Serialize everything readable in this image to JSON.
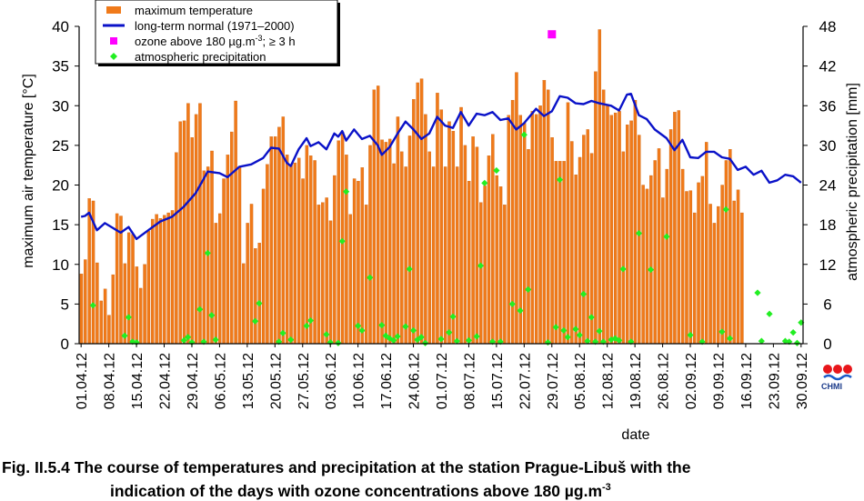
{
  "caption": {
    "line1": "Fig. II.5.4  The course of temperatures and precipitation at the station Prague-Libuš with the",
    "line2_main": "indication of the days with ozone concentrations above 180 µg.m",
    "line2_sup": "-3"
  },
  "logo": {
    "text": "CHMI"
  },
  "chart_data": {
    "type": "bar",
    "xlabel": "date",
    "ylabel_left": "maximum air temperature [°C]",
    "ylabel_right": "atmospheric precipitation [mm]",
    "ylim_left": [
      0,
      40
    ],
    "ylim_right": [
      0,
      48
    ],
    "yticks_left": [
      "0",
      "5",
      "10",
      "15",
      "20",
      "25",
      "30",
      "35",
      "40"
    ],
    "yticks_right": [
      "0",
      "6",
      "12",
      "18",
      "24",
      "30",
      "36",
      "42",
      "48"
    ],
    "xtick_labels": [
      "01.04.12",
      "08.04.12",
      "15.04.12",
      "22.04.12",
      "29.04.12",
      "06.05.12",
      "13.05.12",
      "20.05.12",
      "27.05.12",
      "03.06.12",
      "10.06.12",
      "17.06.12",
      "24.06.12",
      "01.07.12",
      "08.07.12",
      "15.07.12",
      "22.07.12",
      "29.07.12",
      "05.08.12",
      "12.08.12",
      "19.08.12",
      "26.08.12",
      "02.09.12",
      "09.09.12",
      "16.09.12",
      "23.09.12",
      "30.09.12"
    ],
    "legend": {
      "placement": "top-left",
      "items": [
        {
          "label": "maximum temperature",
          "marker": "bar",
          "color": "#f07a1a"
        },
        {
          "label": "long-term normal (1971–2000)",
          "marker": "line",
          "color": "#0a12c8"
        },
        {
          "label": "ozone above 180 µg.m-3; ≥ 3 h",
          "label_main": "ozone above 180 µg.m",
          "label_sup": "-3",
          "label_tail": "; ≥ 3 h",
          "marker": "square",
          "color": "#ff00ff"
        },
        {
          "label": "atmospheric precipitation",
          "marker": "diamond",
          "color": "#22ee22"
        }
      ]
    },
    "colors": {
      "bar": "#f07a1a",
      "bar_edge": "#c85a00",
      "normal": "#0a12c8",
      "ozone": "#ff00ff",
      "precip": "#22ee22"
    },
    "series": {
      "max_temperature": [
        8.8,
        10.6,
        18.3,
        18.0,
        10.2,
        5.4,
        6.9,
        3.6,
        8.7,
        16.4,
        16.1,
        10.1,
        14.0,
        13.8,
        9.7,
        7.0,
        10.0,
        14.2,
        15.7,
        16.3,
        15.8,
        16.2,
        16.5,
        16.8,
        24.1,
        28.0,
        28.1,
        30.3,
        26.0,
        28.9,
        30.3,
        21.8,
        22.3,
        24.3,
        15.2,
        16.4,
        20.8,
        23.8,
        26.7,
        30.6,
        22.3,
        10.1,
        15.2,
        17.6,
        12.0,
        12.7,
        19.5,
        22.6,
        26.1,
        26.1,
        27.3,
        28.6,
        23.8,
        22.6,
        22.8,
        23.4,
        20.8,
        25.0,
        23.7,
        23.1,
        17.5,
        17.8,
        18.4,
        15.5,
        21.2,
        25.6,
        26.7,
        23.8,
        16.3,
        20.8,
        20.5,
        22.2,
        17.5,
        25.0,
        32.0,
        32.5,
        25.7,
        25.4,
        25.8,
        22.7,
        28.6,
        24.2,
        22.3,
        26.2,
        30.8,
        32.9,
        33.4,
        28.9,
        24.2,
        22.3,
        31.6,
        29.5,
        22.3,
        28.0,
        26.8,
        22.3,
        29.8,
        25.0,
        20.5,
        26.1,
        24.8,
        17.8,
        19.9,
        23.7,
        26.4,
        21.2,
        19.8,
        17.5,
        28.8,
        30.7,
        34.2,
        28.8,
        27.8,
        24.5,
        29.3,
        28.9,
        30.0,
        33.2,
        32.0,
        26.0,
        23.0,
        23.0,
        23.0,
        30.4,
        25.5,
        21.3,
        23.5,
        26.3,
        27.0,
        24.0,
        34.3,
        39.6,
        32.0,
        30.0,
        28.8,
        29.1,
        29.3,
        24.2,
        27.6,
        28.1,
        30.7,
        26.3,
        20.0,
        19.5,
        21.2,
        23.1,
        24.6,
        18.4,
        22.0,
        27.0,
        29.2,
        29.4,
        22.0,
        19.2,
        19.3,
        16.5,
        20.3,
        21.1,
        25.4,
        17.6,
        15.2,
        17.3,
        20.0,
        23.1,
        24.5,
        18.0,
        19.4,
        16.5
      ],
      "normal": [
        {
          "date": "01.04.12",
          "value": 16.0
        },
        {
          "date": "02.04.12",
          "value": 16.1
        },
        {
          "date": "03.04.12",
          "value": 16.5
        },
        {
          "date": "05.04.12",
          "value": 14.3
        },
        {
          "date": "07.04.12",
          "value": 15.2
        },
        {
          "date": "09.04.12",
          "value": 14.6
        },
        {
          "date": "11.04.12",
          "value": 14.0
        },
        {
          "date": "13.04.12",
          "value": 14.7
        },
        {
          "date": "15.04.12",
          "value": 13.2
        },
        {
          "date": "18.04.12",
          "value": 14.3
        },
        {
          "date": "21.04.12",
          "value": 15.4
        },
        {
          "date": "24.04.12",
          "value": 16.0
        },
        {
          "date": "27.04.12",
          "value": 17.3
        },
        {
          "date": "30.04.12",
          "value": 19.0
        },
        {
          "date": "03.05.12",
          "value": 21.7
        },
        {
          "date": "06.05.12",
          "value": 21.5
        },
        {
          "date": "08.05.12",
          "value": 21.0
        },
        {
          "date": "11.05.12",
          "value": 22.3
        },
        {
          "date": "14.05.12",
          "value": 22.6
        },
        {
          "date": "17.05.12",
          "value": 23.4
        },
        {
          "date": "19.05.12",
          "value": 24.7
        },
        {
          "date": "21.05.12",
          "value": 24.6
        },
        {
          "date": "23.05.12",
          "value": 22.8
        },
        {
          "date": "24.05.12",
          "value": 22.4
        },
        {
          "date": "26.05.12",
          "value": 24.5
        },
        {
          "date": "28.05.12",
          "value": 25.9
        },
        {
          "date": "29.05.12",
          "value": 24.9
        },
        {
          "date": "31.05.12",
          "value": 25.4
        },
        {
          "date": "02.06.12",
          "value": 24.5
        },
        {
          "date": "04.06.12",
          "value": 26.5
        },
        {
          "date": "05.06.12",
          "value": 26.1
        },
        {
          "date": "06.06.12",
          "value": 26.8
        },
        {
          "date": "07.06.12",
          "value": 25.6
        },
        {
          "date": "09.06.12",
          "value": 27.0
        },
        {
          "date": "11.06.12",
          "value": 25.8
        },
        {
          "date": "13.06.12",
          "value": 26.2
        },
        {
          "date": "15.06.12",
          "value": 25.0
        },
        {
          "date": "16.06.12",
          "value": 23.8
        },
        {
          "date": "18.06.12",
          "value": 24.8
        },
        {
          "date": "20.06.12",
          "value": 26.5
        },
        {
          "date": "22.06.12",
          "value": 28.0
        },
        {
          "date": "24.06.12",
          "value": 27.0
        },
        {
          "date": "26.06.12",
          "value": 25.8
        },
        {
          "date": "28.06.12",
          "value": 26.5
        },
        {
          "date": "30.06.12",
          "value": 28.6
        },
        {
          "date": "02.07.12",
          "value": 27.5
        },
        {
          "date": "04.07.12",
          "value": 27.2
        },
        {
          "date": "06.07.12",
          "value": 29.2
        },
        {
          "date": "08.07.12",
          "value": 27.5
        },
        {
          "date": "10.07.12",
          "value": 29.0
        },
        {
          "date": "12.07.12",
          "value": 28.8
        },
        {
          "date": "14.07.12",
          "value": 29.2
        },
        {
          "date": "16.07.12",
          "value": 28.2
        },
        {
          "date": "18.07.12",
          "value": 28.4
        },
        {
          "date": "20.07.12",
          "value": 27.0
        },
        {
          "date": "22.07.12",
          "value": 27.8
        },
        {
          "date": "25.07.12",
          "value": 29.6
        },
        {
          "date": "27.07.12",
          "value": 28.7
        },
        {
          "date": "29.07.12",
          "value": 29.3
        },
        {
          "date": "31.07.12",
          "value": 31.2
        },
        {
          "date": "02.08.12",
          "value": 31.0
        },
        {
          "date": "04.08.12",
          "value": 30.3
        },
        {
          "date": "06.08.12",
          "value": 30.2
        },
        {
          "date": "08.08.12",
          "value": 30.6
        },
        {
          "date": "10.08.12",
          "value": 30.3
        },
        {
          "date": "13.08.12",
          "value": 30.0
        },
        {
          "date": "15.08.12",
          "value": 29.4
        },
        {
          "date": "17.08.12",
          "value": 31.4
        },
        {
          "date": "18.08.12",
          "value": 31.5
        },
        {
          "date": "20.08.12",
          "value": 28.8
        },
        {
          "date": "22.08.12",
          "value": 28.3
        },
        {
          "date": "24.08.12",
          "value": 27.0
        },
        {
          "date": "27.08.12",
          "value": 25.9
        },
        {
          "date": "29.08.12",
          "value": 24.4
        },
        {
          "date": "31.08.12",
          "value": 25.7
        },
        {
          "date": "02.09.12",
          "value": 23.5
        },
        {
          "date": "04.09.12",
          "value": 23.4
        },
        {
          "date": "06.09.12",
          "value": 24.2
        },
        {
          "date": "08.09.12",
          "value": 24.2
        },
        {
          "date": "10.09.12",
          "value": 23.5
        },
        {
          "date": "12.09.12",
          "value": 23.3
        },
        {
          "date": "14.09.12",
          "value": 21.9
        },
        {
          "date": "16.09.12",
          "value": 22.3
        },
        {
          "date": "18.09.12",
          "value": 21.3
        },
        {
          "date": "20.09.12",
          "value": 21.8
        },
        {
          "date": "22.09.12",
          "value": 20.3
        },
        {
          "date": "24.09.12",
          "value": 20.6
        },
        {
          "date": "26.09.12",
          "value": 21.3
        },
        {
          "date": "28.09.12",
          "value": 21.1
        },
        {
          "date": "30.09.12",
          "value": 20.3
        }
      ],
      "ozone": [
        {
          "date": "29.07.12",
          "value": 39.0
        }
      ],
      "precipitation_mm": [
        {
          "date": "04.04.12",
          "value": 5.8
        },
        {
          "date": "12.04.12",
          "value": 1.2
        },
        {
          "date": "13.04.12",
          "value": 4.0
        },
        {
          "date": "14.04.12",
          "value": 0.3
        },
        {
          "date": "15.04.12",
          "value": 0.2
        },
        {
          "date": "27.04.12",
          "value": 0.5
        },
        {
          "date": "28.04.12",
          "value": 1.0
        },
        {
          "date": "29.04.12",
          "value": 0.2
        },
        {
          "date": "01.05.12",
          "value": 5.2
        },
        {
          "date": "02.05.12",
          "value": 0.3
        },
        {
          "date": "03.05.12",
          "value": 13.7
        },
        {
          "date": "04.05.12",
          "value": 4.3
        },
        {
          "date": "05.05.12",
          "value": 0.6
        },
        {
          "date": "15.05.12",
          "value": 3.4
        },
        {
          "date": "16.05.12",
          "value": 6.1
        },
        {
          "date": "21.05.12",
          "value": 0.3
        },
        {
          "date": "22.05.12",
          "value": 1.6
        },
        {
          "date": "24.05.12",
          "value": 0.6
        },
        {
          "date": "28.05.12",
          "value": 2.7
        },
        {
          "date": "29.05.12",
          "value": 3.5
        },
        {
          "date": "02.06.12",
          "value": 1.4
        },
        {
          "date": "03.06.12",
          "value": 0.2
        },
        {
          "date": "05.06.12",
          "value": 0.1
        },
        {
          "date": "06.06.12",
          "value": 15.5
        },
        {
          "date": "07.06.12",
          "value": 23.0
        },
        {
          "date": "10.06.12",
          "value": 2.7
        },
        {
          "date": "11.06.12",
          "value": 2.0
        },
        {
          "date": "13.06.12",
          "value": 10.0
        },
        {
          "date": "16.06.12",
          "value": 2.8
        },
        {
          "date": "17.06.12",
          "value": 1.2
        },
        {
          "date": "18.06.12",
          "value": 0.8
        },
        {
          "date": "19.06.12",
          "value": 0.5
        },
        {
          "date": "20.06.12",
          "value": 1.1
        },
        {
          "date": "22.06.12",
          "value": 2.6
        },
        {
          "date": "23.06.12",
          "value": 11.3
        },
        {
          "date": "24.06.12",
          "value": 2.0
        },
        {
          "date": "25.06.12",
          "value": 0.6
        },
        {
          "date": "26.06.12",
          "value": 1.0
        },
        {
          "date": "27.06.12",
          "value": 0.1
        },
        {
          "date": "01.07.12",
          "value": 0.7
        },
        {
          "date": "03.07.12",
          "value": 1.7
        },
        {
          "date": "04.07.12",
          "value": 4.1
        },
        {
          "date": "05.07.12",
          "value": 0.4
        },
        {
          "date": "08.07.12",
          "value": 0.5
        },
        {
          "date": "10.07.12",
          "value": 1.1
        },
        {
          "date": "11.07.12",
          "value": 11.8
        },
        {
          "date": "12.07.12",
          "value": 24.3
        },
        {
          "date": "14.07.12",
          "value": 0.3
        },
        {
          "date": "15.07.12",
          "value": 26.2
        },
        {
          "date": "16.07.12",
          "value": 0.3
        },
        {
          "date": "19.07.12",
          "value": 6.0
        },
        {
          "date": "21.07.12",
          "value": 5.0
        },
        {
          "date": "22.07.12",
          "value": 31.6
        },
        {
          "date": "23.07.12",
          "value": 8.2
        },
        {
          "date": "28.07.12",
          "value": 0.2
        },
        {
          "date": "30.07.12",
          "value": 2.5
        },
        {
          "date": "31.07.12",
          "value": 24.8
        },
        {
          "date": "01.08.12",
          "value": 2.0
        },
        {
          "date": "02.08.12",
          "value": 1.0
        },
        {
          "date": "04.08.12",
          "value": 2.2
        },
        {
          "date": "05.08.12",
          "value": 1.3
        },
        {
          "date": "06.08.12",
          "value": 7.5
        },
        {
          "date": "07.08.12",
          "value": 0.4
        },
        {
          "date": "08.08.12",
          "value": 4.0
        },
        {
          "date": "09.08.12",
          "value": 0.3
        },
        {
          "date": "10.08.12",
          "value": 1.9
        },
        {
          "date": "11.08.12",
          "value": 0.3
        },
        {
          "date": "13.08.12",
          "value": 0.6
        },
        {
          "date": "14.08.12",
          "value": 0.8
        },
        {
          "date": "15.08.12",
          "value": 0.5
        },
        {
          "date": "16.08.12",
          "value": 11.3
        },
        {
          "date": "18.08.12",
          "value": 0.3
        },
        {
          "date": "20.08.12",
          "value": 16.7
        },
        {
          "date": "23.08.12",
          "value": 11.2
        },
        {
          "date": "27.08.12",
          "value": 16.2
        },
        {
          "date": "02.09.12",
          "value": 1.3
        },
        {
          "date": "05.09.12",
          "value": 0.3
        },
        {
          "date": "10.09.12",
          "value": 1.8
        },
        {
          "date": "11.09.12",
          "value": 20.3
        },
        {
          "date": "12.09.12",
          "value": 0.8
        },
        {
          "date": "19.09.12",
          "value": 7.7
        },
        {
          "date": "20.09.12",
          "value": 0.4
        },
        {
          "date": "22.09.12",
          "value": 4.5
        },
        {
          "date": "26.09.12",
          "value": 0.4
        },
        {
          "date": "27.09.12",
          "value": 0.3
        },
        {
          "date": "28.09.12",
          "value": 1.7
        },
        {
          "date": "29.09.12",
          "value": 0.1
        },
        {
          "date": "30.09.12",
          "value": 3.2
        }
      ]
    }
  }
}
